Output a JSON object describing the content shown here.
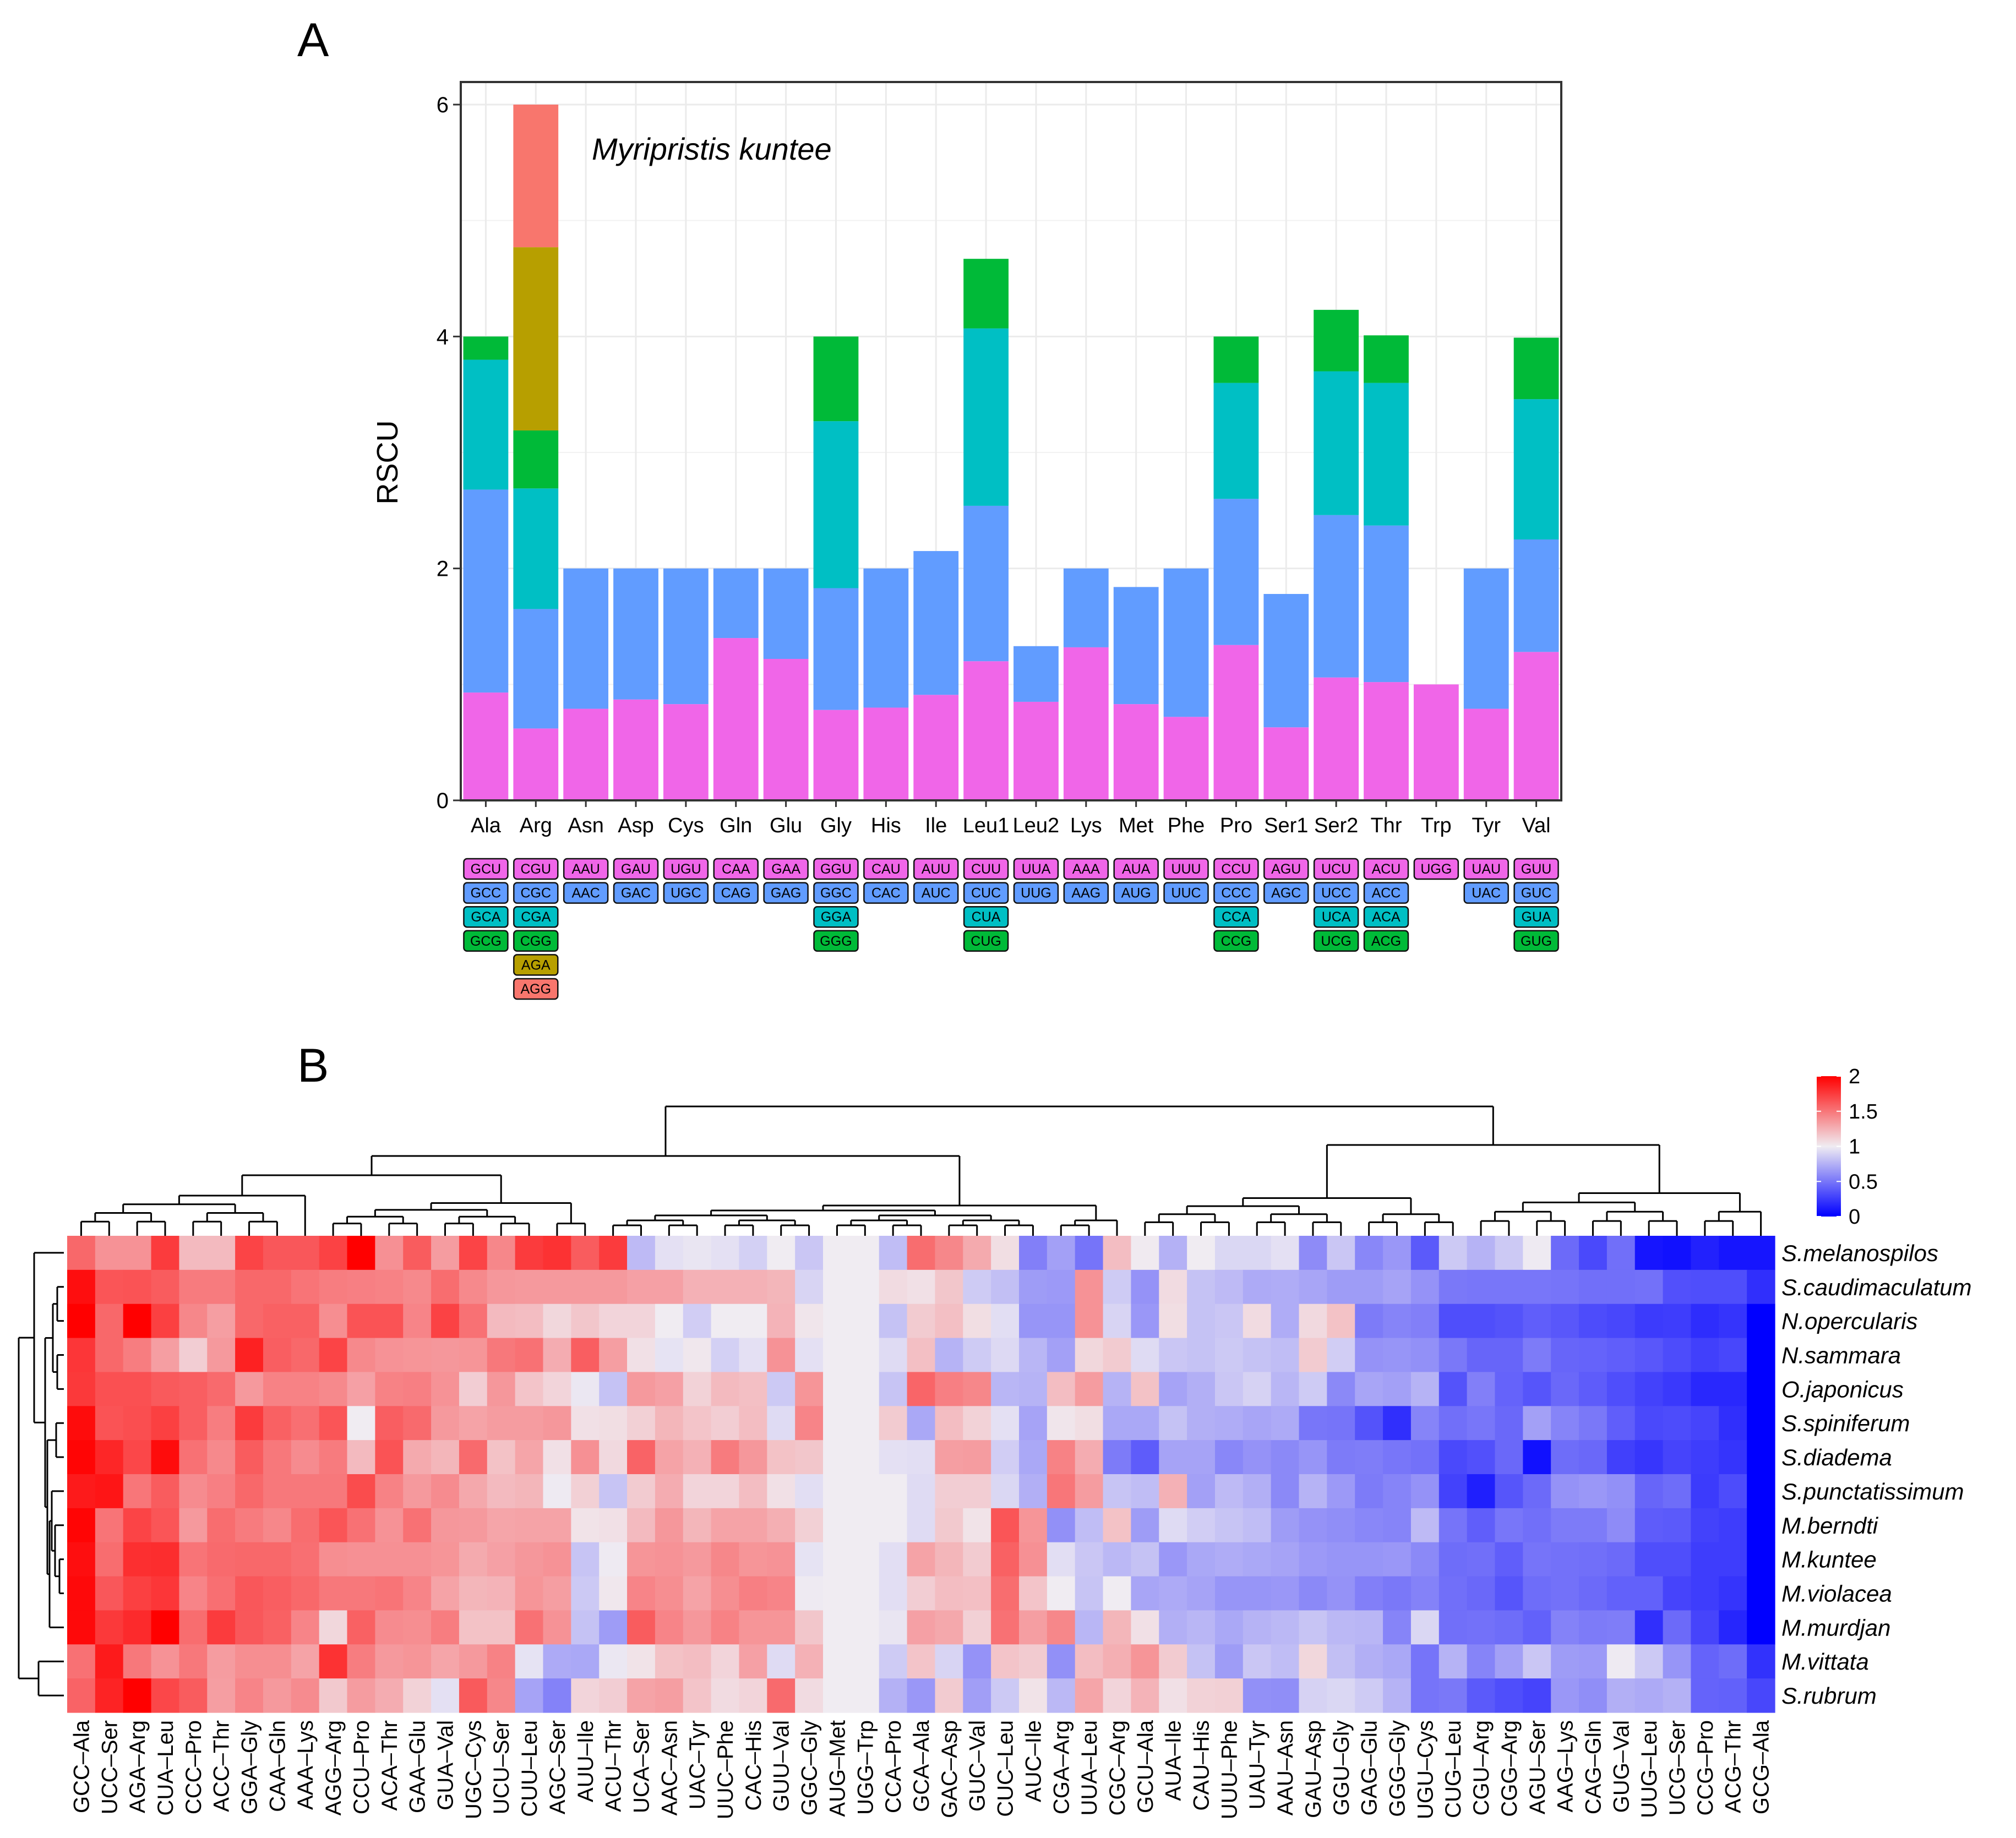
{
  "panel_a": {
    "label": "A",
    "annotation": "Myripristis kuntee"
  },
  "panel_b": {
    "label": "B"
  },
  "colors": {
    "codon_position_1": "#F066E8",
    "codon_position_2": "#619CFF",
    "codon_position_3": "#00BFC4",
    "codon_position_4": "#00BA38",
    "codon_position_5": "#B79F00",
    "codon_position_6": "#F8766D",
    "heat_high": "#FF0000",
    "heat_mid": "#F0ECF2",
    "heat_low": "#0000FF"
  },
  "chart_data": [
    {
      "type": "bar",
      "stacked": true,
      "title": "",
      "annotation": "Myripristis kuntee",
      "xlabel": "",
      "ylabel": "RSCU",
      "ylim": [
        0,
        6.2
      ],
      "yticks": [
        "0",
        "2",
        "4",
        "6"
      ],
      "grid": true,
      "categories": [
        "Ala",
        "Arg",
        "Asn",
        "Asp",
        "Cys",
        "Gln",
        "Glu",
        "Gly",
        "His",
        "Ile",
        "Leu1",
        "Leu2",
        "Lys",
        "Met",
        "Phe",
        "Pro",
        "Ser1",
        "Ser2",
        "Thr",
        "Trp",
        "Tyr",
        "Val"
      ],
      "stacks": [
        [
          0.93,
          1.75,
          1.12,
          0.2
        ],
        [
          0.62,
          1.03,
          1.04,
          0.5,
          1.58,
          1.23
        ],
        [
          0.79,
          1.21
        ],
        [
          0.87,
          1.13
        ],
        [
          0.83,
          1.17
        ],
        [
          1.4,
          0.6
        ],
        [
          1.22,
          0.78
        ],
        [
          0.78,
          1.05,
          1.44,
          0.73
        ],
        [
          0.8,
          1.2
        ],
        [
          0.91,
          1.24
        ],
        [
          1.2,
          1.34,
          1.53,
          0.6
        ],
        [
          0.85,
          0.48
        ],
        [
          1.32,
          0.68
        ],
        [
          0.83,
          1.01
        ],
        [
          0.72,
          1.28
        ],
        [
          1.34,
          1.26,
          1.0,
          0.4
        ],
        [
          0.63,
          1.15
        ],
        [
          1.06,
          1.4,
          1.24,
          0.53
        ],
        [
          1.02,
          1.35,
          1.23,
          0.41
        ],
        [
          1.0
        ],
        [
          0.79,
          1.21
        ],
        [
          1.28,
          0.97,
          1.21,
          0.53
        ]
      ],
      "codon_legend": [
        [
          "GCU",
          "GCC",
          "GCA",
          "GCG"
        ],
        [
          "CGU",
          "CGC",
          "CGA",
          "CGG",
          "AGA",
          "AGG"
        ],
        [
          "AAU",
          "AAC"
        ],
        [
          "GAU",
          "GAC"
        ],
        [
          "UGU",
          "UGC"
        ],
        [
          "CAA",
          "CAG"
        ],
        [
          "GAA",
          "GAG"
        ],
        [
          "GGU",
          "GGC",
          "GGA",
          "GGG"
        ],
        [
          "CAU",
          "CAC"
        ],
        [
          "AUU",
          "AUC"
        ],
        [
          "CUU",
          "CUC",
          "CUA",
          "CUG"
        ],
        [
          "UUA",
          "UUG"
        ],
        [
          "AAA",
          "AAG"
        ],
        [
          "AUA",
          "AUG"
        ],
        [
          "UUU",
          "UUC"
        ],
        [
          "CCU",
          "CCC",
          "CCA",
          "CCG"
        ],
        [
          "AGU",
          "AGC"
        ],
        [
          "UCU",
          "UCC",
          "UCA",
          "UCG"
        ],
        [
          "ACU",
          "ACC",
          "ACA",
          "ACG"
        ],
        [
          "UGG"
        ],
        [
          "UAU",
          "UAC"
        ],
        [
          "GUU",
          "GUC",
          "GUA",
          "GUG"
        ]
      ]
    },
    {
      "type": "heatmap",
      "title": "",
      "colorbar": {
        "ticks": [
          "2",
          "1.5",
          "1",
          "0.5",
          "0"
        ],
        "range": [
          0,
          2
        ]
      },
      "columns": [
        "GCC-Ala",
        "UCC-Ser",
        "AGA-Arg",
        "CUA-Leu",
        "CCC-Pro",
        "ACC-Thr",
        "GGA-Gly",
        "CAA-Gln",
        "AAA-Lys",
        "AGG-Arg",
        "CCU-Pro",
        "ACA-Thr",
        "GAA-Glu",
        "GUA-Val",
        "UGC-Cys",
        "UCU-Ser",
        "CUU-Leu",
        "AGC-Ser",
        "AUU-Ile",
        "ACU-Thr",
        "UCA-Ser",
        "AAC-Asn",
        "UAC-Tyr",
        "UUC-Phe",
        "CAC-His",
        "GUU-Val",
        "GGC-Gly",
        "AUG-Met",
        "UGG-Trp",
        "CCA-Pro",
        "GCA-Ala",
        "GAC-Asp",
        "GUC-Val",
        "CUC-Leu",
        "AUC-Ile",
        "CGA-Arg",
        "UUA-Leu",
        "CGC-Arg",
        "GCU-Ala",
        "AUA-Ile",
        "CAU-His",
        "UUU-Phe",
        "UAU-Tyr",
        "AAU-Asn",
        "GAU-Asp",
        "GGU-Gly",
        "GAG-Glu",
        "GGG-Gly",
        "UGU-Cys",
        "CUG-Leu",
        "CGU-Arg",
        "CGG-Arg",
        "AGU-Ser",
        "AAG-Lys",
        "CAG-Gln",
        "GUG-Val",
        "UUG-Leu",
        "UCG-Ser",
        "CCG-Pro",
        "ACG-Thr",
        "GCG-Ala"
      ],
      "rows": [
        "S.melanospilos",
        "S.caudimaculatum",
        "N.opercularis",
        "N.sammara",
        "O.japonicus",
        "S.spiniferum",
        "S.diadema",
        "S.punctatissimum",
        "M.berndti",
        "M.kuntee",
        "M.violacea",
        "M.murdjan",
        "M.vittata",
        "S.rubrum"
      ],
      "values": [
        [
          1.56,
          1.38,
          1.38,
          1.75,
          1.21,
          1.21,
          1.71,
          1.63,
          1.63,
          1.72,
          2.0,
          1.39,
          1.61,
          1.34,
          1.71,
          1.43,
          1.75,
          1.79,
          1.61,
          1.75,
          0.79,
          0.95,
          0.97,
          0.95,
          0.88,
          1.0,
          0.84,
          1.0,
          1.0,
          0.8,
          1.54,
          1.43,
          1.28,
          1.06,
          0.54,
          0.68,
          0.49,
          1.2,
          1.01,
          0.75,
          1.0,
          0.91,
          0.91,
          0.95,
          0.59,
          0.84,
          0.57,
          0.64,
          0.38,
          0.85,
          0.76,
          0.85,
          0.99,
          0.45,
          0.31,
          0.47,
          0.09,
          0.07,
          0.14,
          0.09,
          0.09
        ],
        [
          1.94,
          1.64,
          1.65,
          1.61,
          1.48,
          1.48,
          1.56,
          1.56,
          1.51,
          1.47,
          1.46,
          1.45,
          1.42,
          1.54,
          1.42,
          1.36,
          1.35,
          1.35,
          1.35,
          1.35,
          1.32,
          1.32,
          1.25,
          1.25,
          1.25,
          1.23,
          0.9,
          1.0,
          1.0,
          1.07,
          1.05,
          1.16,
          0.86,
          0.81,
          0.66,
          0.65,
          1.38,
          0.86,
          0.62,
          1.07,
          0.82,
          0.79,
          0.72,
          0.73,
          0.7,
          0.66,
          0.66,
          0.69,
          0.62,
          0.51,
          0.5,
          0.5,
          0.5,
          0.49,
          0.47,
          0.47,
          0.48,
          0.34,
          0.33,
          0.33,
          0.2
        ],
        [
          2.0,
          1.56,
          2.0,
          1.73,
          1.43,
          1.33,
          1.56,
          1.59,
          1.59,
          1.4,
          1.65,
          1.65,
          1.44,
          1.72,
          1.52,
          1.21,
          1.2,
          1.09,
          1.16,
          1.1,
          1.1,
          1.0,
          0.87,
          1.0,
          1.0,
          1.24,
          1.03,
          1.0,
          1.0,
          0.82,
          1.14,
          1.19,
          1.06,
          0.94,
          0.63,
          0.63,
          1.38,
          0.9,
          0.64,
          1.06,
          0.82,
          0.84,
          1.07,
          0.73,
          1.08,
          1.18,
          0.52,
          0.56,
          0.54,
          0.33,
          0.33,
          0.35,
          0.4,
          0.37,
          0.32,
          0.3,
          0.25,
          0.26,
          0.19,
          0.22,
          0.0
        ],
        [
          1.77,
          1.56,
          1.47,
          1.33,
          1.13,
          1.35,
          1.86,
          1.6,
          1.56,
          1.71,
          1.42,
          1.38,
          1.37,
          1.36,
          1.37,
          1.49,
          1.52,
          1.27,
          1.6,
          1.33,
          1.05,
          0.96,
          1.02,
          0.88,
          0.95,
          1.38,
          0.95,
          1.0,
          1.0,
          0.93,
          1.19,
          0.76,
          0.86,
          0.92,
          0.77,
          0.68,
          1.09,
          1.14,
          0.93,
          0.84,
          0.82,
          0.85,
          0.82,
          0.8,
          1.14,
          0.87,
          0.62,
          0.63,
          0.61,
          0.51,
          0.43,
          0.43,
          0.52,
          0.43,
          0.42,
          0.4,
          0.37,
          0.32,
          0.27,
          0.3,
          0.0
        ],
        [
          1.76,
          1.66,
          1.66,
          1.62,
          1.6,
          1.55,
          1.35,
          1.45,
          1.45,
          1.42,
          1.32,
          1.45,
          1.46,
          1.38,
          1.13,
          1.36,
          1.17,
          1.1,
          0.98,
          0.82,
          1.35,
          1.32,
          1.11,
          1.21,
          1.19,
          0.85,
          1.37,
          1.0,
          1.0,
          0.83,
          1.57,
          1.46,
          1.43,
          0.77,
          0.76,
          1.2,
          1.34,
          0.76,
          1.18,
          0.69,
          0.74,
          0.84,
          0.89,
          0.77,
          0.86,
          0.58,
          0.7,
          0.68,
          0.76,
          0.35,
          0.54,
          0.42,
          0.36,
          0.44,
          0.39,
          0.33,
          0.28,
          0.24,
          0.17,
          0.17,
          0.0
        ],
        [
          1.95,
          1.65,
          1.67,
          1.73,
          1.6,
          1.47,
          1.75,
          1.59,
          1.53,
          1.64,
          1.0,
          1.6,
          1.55,
          1.35,
          1.31,
          1.34,
          1.34,
          1.36,
          1.05,
          1.06,
          1.12,
          1.23,
          1.17,
          1.13,
          1.2,
          0.93,
          1.44,
          1.0,
          1.0,
          1.14,
          0.71,
          1.2,
          1.11,
          0.95,
          0.69,
          1.03,
          1.06,
          0.71,
          0.71,
          0.82,
          0.74,
          0.73,
          0.7,
          0.72,
          0.5,
          0.49,
          0.35,
          0.2,
          0.56,
          0.47,
          0.5,
          0.44,
          0.68,
          0.56,
          0.51,
          0.4,
          0.31,
          0.32,
          0.29,
          0.2,
          0.0
        ],
        [
          1.98,
          1.84,
          1.7,
          1.95,
          1.52,
          1.42,
          1.61,
          1.49,
          1.41,
          1.48,
          1.21,
          1.65,
          1.28,
          1.23,
          1.55,
          1.18,
          1.3,
          1.05,
          1.39,
          1.08,
          1.58,
          1.31,
          1.25,
          1.48,
          1.36,
          1.18,
          1.16,
          1.0,
          1.0,
          0.95,
          0.94,
          1.33,
          1.34,
          0.87,
          0.71,
          1.45,
          1.27,
          0.52,
          0.39,
          0.69,
          0.69,
          0.57,
          0.62,
          0.58,
          0.63,
          0.52,
          0.53,
          0.5,
          0.48,
          0.31,
          0.34,
          0.44,
          0.07,
          0.46,
          0.44,
          0.27,
          0.23,
          0.29,
          0.26,
          0.22,
          0.0
        ],
        [
          1.89,
          1.91,
          1.5,
          1.61,
          1.41,
          1.46,
          1.56,
          1.49,
          1.49,
          1.49,
          1.68,
          1.45,
          1.35,
          1.41,
          1.29,
          1.21,
          1.23,
          0.99,
          1.12,
          0.83,
          1.14,
          1.27,
          1.1,
          1.1,
          1.2,
          1.05,
          0.94,
          1.0,
          1.0,
          1.0,
          0.93,
          1.13,
          1.13,
          0.91,
          0.74,
          1.5,
          1.34,
          0.83,
          0.8,
          1.25,
          0.68,
          0.79,
          0.74,
          0.58,
          0.76,
          0.65,
          0.52,
          0.56,
          0.62,
          0.28,
          0.13,
          0.36,
          0.45,
          0.62,
          0.64,
          0.61,
          0.43,
          0.46,
          0.25,
          0.32,
          0.0
        ],
        [
          1.98,
          1.51,
          1.71,
          1.64,
          1.35,
          1.54,
          1.48,
          1.43,
          1.54,
          1.64,
          1.52,
          1.38,
          1.52,
          1.36,
          1.35,
          1.3,
          1.31,
          1.31,
          1.04,
          1.05,
          1.21,
          1.36,
          1.23,
          1.31,
          1.31,
          1.26,
          1.12,
          1.0,
          1.0,
          1.0,
          0.93,
          1.15,
          1.04,
          1.64,
          1.37,
          0.61,
          0.8,
          1.18,
          0.66,
          0.93,
          0.87,
          0.83,
          0.8,
          0.66,
          0.62,
          0.6,
          0.57,
          0.56,
          0.79,
          0.49,
          0.4,
          0.5,
          0.47,
          0.52,
          0.52,
          0.59,
          0.39,
          0.38,
          0.28,
          0.26,
          0.0
        ],
        [
          1.94,
          1.54,
          1.8,
          1.81,
          1.51,
          1.55,
          1.56,
          1.56,
          1.53,
          1.4,
          1.39,
          1.39,
          1.39,
          1.37,
          1.28,
          1.32,
          1.36,
          1.38,
          0.83,
          0.99,
          1.37,
          1.38,
          1.35,
          1.43,
          1.37,
          1.38,
          0.96,
          1.0,
          1.0,
          0.94,
          1.31,
          1.23,
          1.14,
          1.59,
          1.39,
          0.94,
          0.84,
          0.78,
          0.82,
          0.64,
          0.71,
          0.73,
          0.71,
          0.69,
          0.65,
          0.63,
          0.63,
          0.64,
          0.58,
          0.46,
          0.47,
          0.4,
          0.49,
          0.48,
          0.47,
          0.45,
          0.33,
          0.33,
          0.26,
          0.26,
          0.0
        ],
        [
          1.96,
          1.63,
          1.73,
          1.77,
          1.44,
          1.53,
          1.63,
          1.6,
          1.56,
          1.49,
          1.49,
          1.51,
          1.44,
          1.31,
          1.23,
          1.24,
          1.37,
          1.33,
          0.85,
          1.02,
          1.44,
          1.4,
          1.31,
          1.4,
          1.46,
          1.44,
          0.99,
          1.0,
          1.0,
          0.94,
          1.13,
          1.2,
          1.19,
          1.54,
          1.17,
          1.0,
          0.83,
          1.0,
          0.7,
          0.72,
          0.69,
          0.63,
          0.63,
          0.64,
          0.58,
          0.62,
          0.54,
          0.51,
          0.55,
          0.47,
          0.44,
          0.36,
          0.46,
          0.48,
          0.45,
          0.41,
          0.41,
          0.29,
          0.26,
          0.22,
          0.0
        ],
        [
          1.96,
          1.76,
          1.82,
          2.0,
          1.54,
          1.75,
          1.63,
          1.59,
          1.44,
          1.09,
          1.59,
          1.41,
          1.4,
          1.47,
          1.18,
          1.18,
          1.52,
          1.38,
          0.82,
          0.66,
          1.61,
          1.44,
          1.36,
          1.45,
          1.37,
          1.37,
          1.16,
          1.0,
          1.0,
          0.97,
          1.32,
          1.29,
          1.12,
          1.52,
          1.33,
          1.43,
          0.77,
          1.23,
          1.05,
          0.74,
          0.77,
          0.71,
          0.76,
          0.78,
          0.83,
          0.78,
          0.77,
          0.56,
          0.91,
          0.47,
          0.48,
          0.46,
          0.41,
          0.55,
          0.52,
          0.53,
          0.2,
          0.45,
          0.29,
          0.16,
          0.0
        ],
        [
          1.52,
          1.89,
          1.49,
          1.38,
          1.49,
          1.34,
          1.4,
          1.4,
          1.31,
          1.79,
          1.47,
          1.35,
          1.37,
          1.3,
          1.35,
          1.45,
          0.96,
          0.72,
          0.71,
          0.98,
          1.04,
          1.18,
          1.2,
          1.1,
          1.32,
          0.93,
          1.25,
          1.0,
          1.0,
          0.86,
          1.17,
          0.9,
          0.62,
          1.17,
          1.14,
          0.61,
          1.2,
          1.26,
          1.37,
          1.14,
          0.82,
          0.66,
          0.84,
          0.8,
          1.09,
          0.81,
          0.74,
          0.71,
          0.49,
          0.76,
          0.56,
          0.68,
          0.84,
          0.66,
          0.65,
          0.99,
          0.85,
          0.63,
          0.42,
          0.46,
          0.21
        ],
        [
          1.58,
          1.85,
          2.0,
          1.7,
          1.61,
          1.33,
          1.44,
          1.35,
          1.41,
          1.15,
          1.34,
          1.27,
          1.11,
          0.95,
          1.62,
          1.43,
          0.69,
          0.55,
          1.1,
          1.13,
          1.31,
          1.33,
          1.17,
          1.07,
          1.1,
          1.55,
          1.07,
          1.0,
          1.0,
          0.75,
          0.64,
          1.14,
          0.67,
          0.85,
          1.04,
          0.78,
          1.3,
          1.1,
          1.24,
          1.05,
          1.11,
          1.12,
          0.61,
          0.6,
          0.89,
          0.91,
          0.86,
          0.76,
          0.49,
          0.51,
          0.38,
          0.33,
          0.29,
          0.64,
          0.6,
          0.74,
          0.72,
          0.75,
          0.42,
          0.41,
          0.3
        ]
      ]
    }
  ]
}
